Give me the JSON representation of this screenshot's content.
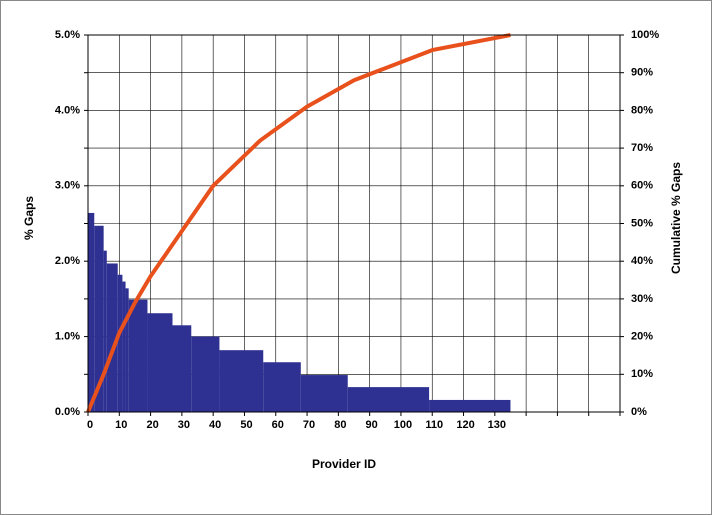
{
  "chart_data": {
    "type": "histogram",
    "xlabel": "Provider ID",
    "ylabel": "% Gaps",
    "y2label": "Cumulative % Gaps",
    "bins": [
      0,
      2,
      5,
      6,
      9.5,
      11,
      12,
      13,
      19,
      27,
      33,
      42,
      56,
      68,
      83,
      109,
      135
    ],
    "values": [
      2.64,
      2.47,
      2.14,
      1.97,
      1.82,
      1.73,
      1.64,
      1.49,
      1.31,
      1.15,
      1.0,
      0.82,
      0.66,
      0.49,
      0.33,
      0.16
    ],
    "color": "#2e3192",
    "line": {
      "type": "line",
      "axis": "y2",
      "color": "#e8501c",
      "x": [
        0,
        5,
        10,
        15,
        20,
        30,
        40,
        55,
        70,
        85,
        110,
        135
      ],
      "values": [
        0,
        10,
        21,
        29,
        36,
        48,
        60,
        72,
        81,
        88,
        96,
        100
      ]
    },
    "xlim": [
      0,
      170
    ],
    "xticks": [
      0,
      10,
      20,
      30,
      40,
      50,
      60,
      70,
      80,
      90,
      100,
      110,
      120,
      130,
      {
        "value": 140,
        "label": null
      },
      {
        "value": 150,
        "label": null
      },
      {
        "value": 160,
        "label": null
      },
      {
        "value": 170,
        "label": null
      }
    ],
    "ylim": [
      0,
      5
    ],
    "yticks": [
      {
        "value": 0,
        "label": "0.0%"
      },
      {
        "value": 0.5,
        "label": null
      },
      {
        "value": 1,
        "label": "1.0%"
      },
      {
        "value": 1.5,
        "label": null
      },
      {
        "value": 2,
        "label": "2.0%"
      },
      {
        "value": 2.5,
        "label": null
      },
      {
        "value": 3,
        "label": "3.0%"
      },
      {
        "value": 3.5,
        "label": null
      },
      {
        "value": 4,
        "label": "4.0%"
      },
      {
        "value": 4.5,
        "label": null
      },
      {
        "value": 5,
        "label": "5.0%"
      }
    ],
    "y2lim": [
      0,
      100
    ],
    "y2ticks": [
      {
        "value": 0,
        "label": "0%"
      },
      {
        "value": 10,
        "label": "10%"
      },
      {
        "value": 20,
        "label": "20%"
      },
      {
        "value": 30,
        "label": "30%"
      },
      {
        "value": 40,
        "label": "40%"
      },
      {
        "value": 50,
        "label": "50%"
      },
      {
        "value": 60,
        "label": "60%"
      },
      {
        "value": 70,
        "label": "70%"
      },
      {
        "value": 80,
        "label": "80%"
      },
      {
        "value": 90,
        "label": "90%"
      },
      {
        "value": 100,
        "label": "100%"
      }
    ],
    "grid": true
  }
}
